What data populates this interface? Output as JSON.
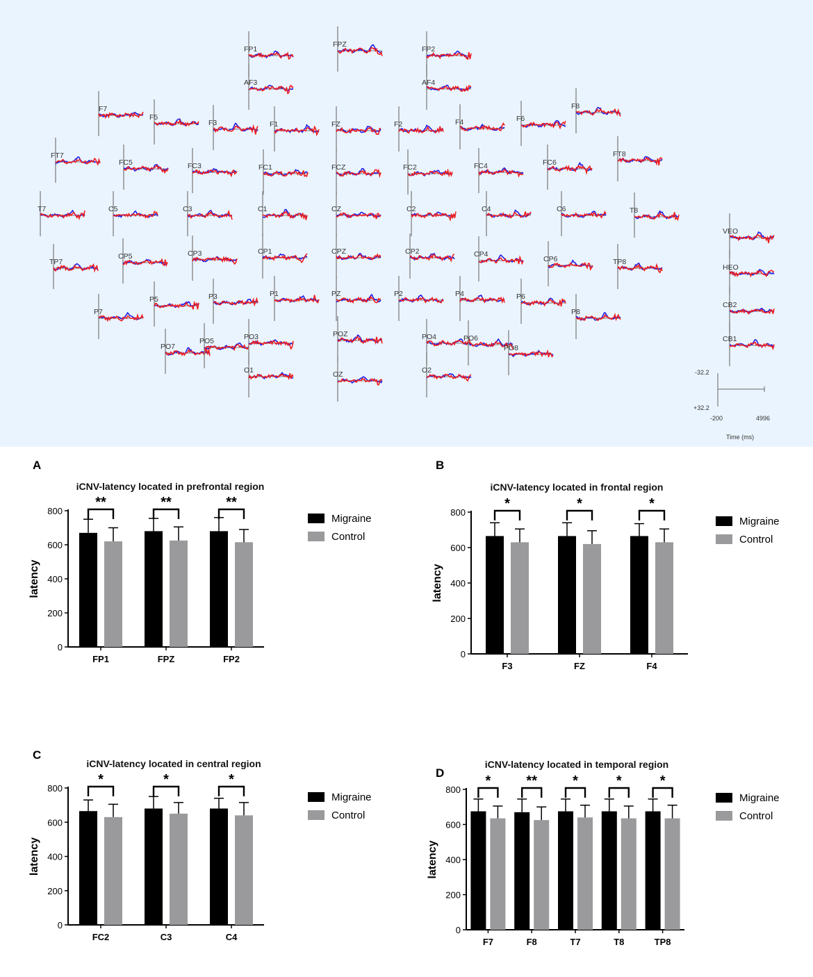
{
  "topo_map": {
    "background": "#eaf4fe",
    "colors": {
      "migraine_trace": "#1f1fe6",
      "control_trace": "#f01e1e",
      "axis": "#808080"
    },
    "electrodes": [
      "FP1",
      "FPZ",
      "FP2",
      "AF3",
      "AF4",
      "F7",
      "F5",
      "F3",
      "F1",
      "FZ",
      "F2",
      "F4",
      "F6",
      "F8",
      "FT7",
      "FC5",
      "FC3",
      "FC1",
      "FCZ",
      "FC2",
      "FC4",
      "FC6",
      "FT8",
      "T7",
      "C5",
      "C3",
      "C1",
      "CZ",
      "C2",
      "C4",
      "C6",
      "T8",
      "TP7",
      "CP5",
      "CP3",
      "CP1",
      "CPZ",
      "CP2",
      "CP4",
      "CP6",
      "TP8",
      "P7",
      "P5",
      "P3",
      "P1",
      "PZ",
      "P2",
      "P4",
      "P6",
      "P8",
      "PO7",
      "PO5",
      "PO3",
      "POZ",
      "PO4",
      "PO6",
      "PO8",
      "O1",
      "OZ",
      "O2",
      "VEO",
      "HEO",
      "CB2",
      "CB1"
    ],
    "scale": {
      "y_top": "-32.2",
      "y_bottom": "+32.2",
      "x_start": "-200",
      "x_end": "4996",
      "time_label": "Time (ms)"
    }
  },
  "legend": {
    "migraine": "Migraine",
    "control": "Control"
  },
  "colors": {
    "migraine": "#000000",
    "control": "#9a9a9d"
  },
  "chart_data": [
    {
      "panel": "A",
      "type": "bar",
      "title": "iCNV-latency located in prefrontal region",
      "ylabel": "latency",
      "xlabel": "",
      "ylim": [
        0,
        800
      ],
      "yticks": [
        0,
        200,
        400,
        600,
        800
      ],
      "categories": [
        "FP1",
        "FPZ",
        "FP2"
      ],
      "series": [
        {
          "name": "Migraine",
          "values": [
            670,
            680,
            680
          ],
          "errors": [
            80,
            75,
            80
          ]
        },
        {
          "name": "Control",
          "values": [
            620,
            625,
            615
          ],
          "errors": [
            80,
            80,
            75
          ]
        }
      ],
      "significance": [
        "**",
        "**",
        "**"
      ]
    },
    {
      "panel": "B",
      "type": "bar",
      "title": "iCNV-latency located in frontal region",
      "ylabel": "latency",
      "xlabel": "",
      "ylim": [
        0,
        800
      ],
      "yticks": [
        0,
        200,
        400,
        600,
        800
      ],
      "categories": [
        "F3",
        "FZ",
        "F4"
      ],
      "series": [
        {
          "name": "Migraine",
          "values": [
            665,
            665,
            665
          ],
          "errors": [
            75,
            75,
            70
          ]
        },
        {
          "name": "Control",
          "values": [
            630,
            620,
            630
          ],
          "errors": [
            75,
            75,
            75
          ]
        }
      ],
      "significance": [
        "*",
        "*",
        "*"
      ]
    },
    {
      "panel": "C",
      "type": "bar",
      "title": "iCNV-latency located in central region",
      "ylabel": "latency",
      "xlabel": "",
      "ylim": [
        0,
        800
      ],
      "yticks": [
        0,
        200,
        400,
        600,
        800
      ],
      "categories": [
        "FC2",
        "C3",
        "C4"
      ],
      "series": [
        {
          "name": "Migraine",
          "values": [
            665,
            680,
            680
          ],
          "errors": [
            65,
            70,
            60
          ]
        },
        {
          "name": "Control",
          "values": [
            630,
            650,
            640
          ],
          "errors": [
            75,
            65,
            75
          ]
        }
      ],
      "significance": [
        "*",
        "*",
        "*"
      ]
    },
    {
      "panel": "D",
      "type": "bar",
      "title": "iCNV-latency located in temporal region",
      "ylabel": "latency",
      "xlabel": "",
      "ylim": [
        0,
        800
      ],
      "yticks": [
        0,
        200,
        400,
        600,
        800
      ],
      "categories": [
        "F7",
        "F8",
        "T7",
        "T8",
        "TP8"
      ],
      "series": [
        {
          "name": "Migraine",
          "values": [
            675,
            670,
            675,
            675,
            675
          ],
          "errors": [
            70,
            75,
            70,
            70,
            70
          ]
        },
        {
          "name": "Control",
          "values": [
            635,
            625,
            640,
            635,
            635
          ],
          "errors": [
            70,
            75,
            70,
            70,
            75
          ]
        }
      ],
      "significance": [
        "*",
        "**",
        "*",
        "*",
        "*"
      ]
    }
  ]
}
